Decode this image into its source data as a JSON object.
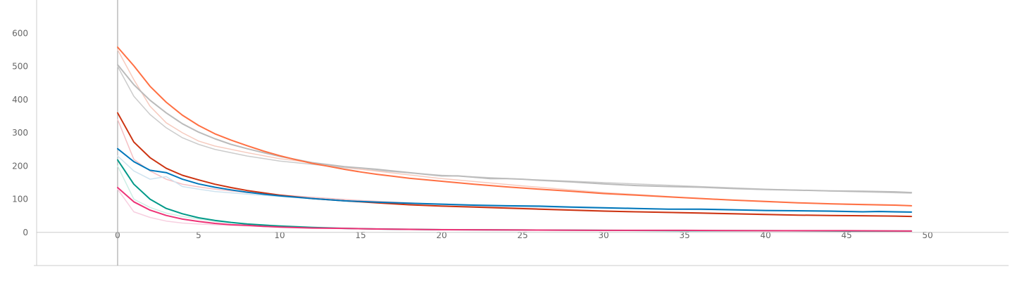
{
  "chart_data": {
    "type": "line",
    "title": "",
    "xlabel": "",
    "ylabel": "",
    "xlim": [
      -5,
      55
    ],
    "ylim": [
      -100,
      700
    ],
    "x_ticks": [
      0,
      5,
      10,
      15,
      20,
      25,
      30,
      35,
      40,
      45,
      50
    ],
    "y_ticks": [
      0,
      100,
      200,
      300,
      400,
      500,
      600
    ],
    "x_tick_labels": [
      "0",
      "5",
      "10",
      "15",
      "20",
      "25",
      "30",
      "35",
      "40",
      "45",
      "50"
    ],
    "y_tick_labels": [
      "0",
      "100",
      "200",
      "300",
      "400",
      "500",
      "600"
    ],
    "grid": false,
    "legend": "none",
    "series": [
      {
        "color": "#cccccc",
        "faint": true,
        "x": [
          0,
          1,
          2,
          3,
          4,
          5,
          6,
          8,
          10,
          12,
          15,
          20,
          25,
          30,
          35,
          40,
          45,
          49
        ],
        "y": [
          500,
          410,
          355,
          315,
          285,
          265,
          250,
          230,
          215,
          205,
          190,
          172,
          160,
          150,
          140,
          130,
          123,
          118
        ]
      },
      {
        "color": "#f6cbbf",
        "faint": true,
        "x": [
          0,
          1,
          2,
          3,
          4,
          5,
          6,
          8,
          10,
          12,
          15,
          20,
          25,
          30,
          35,
          40,
          45,
          49
        ],
        "y": [
          550,
          460,
          380,
          330,
          300,
          275,
          260,
          240,
          222,
          210,
          190,
          162,
          140,
          120,
          105,
          92,
          84,
          80
        ]
      },
      {
        "color": "#f5c0c4",
        "faint": true,
        "x": [
          0,
          1,
          2,
          3,
          4,
          5,
          6,
          8,
          10,
          12,
          15,
          20,
          25,
          30,
          35,
          40,
          45,
          49
        ],
        "y": [
          340,
          220,
          185,
          160,
          145,
          137,
          130,
          120,
          113,
          106,
          96,
          84,
          73,
          65,
          58,
          53,
          50,
          48
        ]
      },
      {
        "color": "#cfe3ef",
        "faint": true,
        "x": [
          0,
          1,
          2,
          3,
          4,
          5,
          6,
          8,
          10,
          12,
          15,
          20,
          25,
          30,
          35,
          40,
          45,
          49
        ],
        "y": [
          230,
          185,
          160,
          168,
          138,
          130,
          123,
          115,
          108,
          102,
          93,
          83,
          77,
          72,
          69,
          65,
          62,
          60
        ]
      },
      {
        "color": "#cdeee5",
        "faint": true,
        "x": [
          0,
          1,
          2,
          3,
          4,
          5,
          6,
          8,
          10,
          12,
          15,
          20,
          25,
          30,
          35,
          40,
          45,
          49
        ],
        "y": [
          200,
          100,
          75,
          58,
          48,
          40,
          33,
          26,
          20,
          16,
          12,
          9,
          7,
          6,
          5,
          5,
          4,
          4
        ]
      },
      {
        "color": "#f7cfe0",
        "faint": true,
        "x": [
          0,
          1,
          2,
          3,
          4,
          5,
          6,
          8,
          10,
          12,
          15,
          20,
          25,
          30,
          35,
          40,
          45,
          49
        ],
        "y": [
          130,
          62,
          45,
          34,
          28,
          25,
          23,
          19,
          16,
          14,
          12,
          9,
          7,
          6,
          5,
          5,
          4,
          4
        ]
      },
      {
        "color": "#bbbbbb",
        "x": [
          0,
          1,
          2,
          3,
          4,
          5,
          6,
          7,
          8,
          9,
          10,
          12,
          14,
          16,
          18,
          20,
          21,
          22,
          23,
          24,
          25,
          26,
          28,
          30,
          32,
          34,
          36,
          38,
          40,
          42,
          44,
          46,
          48,
          49
        ],
        "y": [
          505,
          445,
          398,
          360,
          327,
          302,
          282,
          265,
          252,
          240,
          229,
          210,
          198,
          190,
          180,
          170,
          170,
          166,
          162,
          162,
          160,
          157,
          152,
          146,
          141,
          138,
          136,
          132,
          129,
          127,
          125,
          124,
          122,
          120
        ]
      },
      {
        "color": "#ff7043",
        "x": [
          0,
          1,
          2,
          3,
          4,
          5,
          6,
          7,
          8,
          9,
          10,
          11,
          12,
          13,
          14,
          15,
          16,
          17,
          18,
          20,
          22,
          24,
          26,
          28,
          30,
          32,
          34,
          36,
          38,
          40,
          42,
          44,
          46,
          48,
          49
        ],
        "y": [
          558,
          502,
          440,
          392,
          353,
          322,
          297,
          278,
          261,
          245,
          231,
          219,
          208,
          199,
          190,
          182,
          175,
          169,
          163,
          154,
          145,
          137,
          130,
          124,
          117,
          112,
          107,
          102,
          97,
          93,
          89,
          86,
          84,
          82,
          80
        ]
      },
      {
        "color": "#cc3311",
        "x": [
          0,
          1,
          2,
          3,
          4,
          5,
          6,
          7,
          8,
          9,
          10,
          12,
          14,
          16,
          18,
          20,
          22,
          24,
          26,
          28,
          30,
          32,
          34,
          36,
          38,
          40,
          42,
          44,
          46,
          48,
          49
        ],
        "y": [
          360,
          272,
          225,
          193,
          172,
          158,
          145,
          135,
          126,
          119,
          112,
          102,
          95,
          89,
          83,
          79,
          76,
          73,
          70,
          67,
          64,
          62,
          60,
          58,
          56,
          54,
          52,
          51,
          50,
          49,
          48
        ]
      },
      {
        "color": "#0077bb",
        "x": [
          0,
          1,
          2,
          3,
          4,
          5,
          6,
          7,
          8,
          9,
          10,
          12,
          14,
          16,
          18,
          20,
          22,
          24,
          26,
          28,
          30,
          32,
          34,
          36,
          38,
          40,
          42,
          44,
          46,
          47,
          48,
          49
        ],
        "y": [
          252,
          213,
          187,
          180,
          160,
          146,
          136,
          128,
          121,
          115,
          110,
          102,
          95,
          91,
          88,
          85,
          82,
          80,
          79,
          76,
          74,
          72,
          70,
          70,
          68,
          66,
          65,
          64,
          62,
          63,
          62,
          61
        ]
      },
      {
        "color": "#009988",
        "x": [
          0,
          1,
          2,
          3,
          4,
          5,
          6,
          7,
          8,
          9,
          10,
          12,
          14,
          16,
          18,
          20,
          25,
          30,
          35,
          40,
          45,
          49
        ],
        "y": [
          218,
          145,
          100,
          72,
          56,
          44,
          36,
          30,
          25,
          22,
          19,
          15,
          12,
          10,
          9,
          8,
          7,
          6,
          5,
          5,
          4,
          4
        ]
      },
      {
        "color": "#ee3377",
        "x": [
          0,
          1,
          2,
          3,
          4,
          5,
          6,
          7,
          8,
          9,
          10,
          12,
          14,
          16,
          18,
          20,
          25,
          30,
          35,
          40,
          45,
          49
        ],
        "y": [
          135,
          92,
          67,
          51,
          40,
          33,
          27,
          23,
          21,
          18,
          16,
          13,
          12,
          10,
          9,
          8,
          7,
          6,
          6,
          5,
          5,
          4
        ]
      }
    ]
  }
}
